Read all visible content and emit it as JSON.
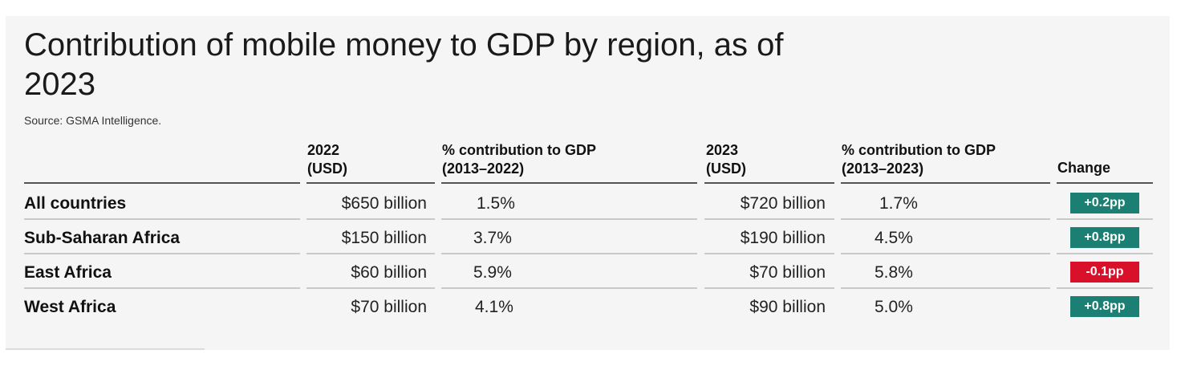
{
  "title": "Contribution of mobile money to GDP by region, as of 2023",
  "source": "Source: GSMA Intelligence.",
  "chart_data": {
    "type": "table",
    "columns": [
      {
        "line1": "",
        "line2": ""
      },
      {
        "line1": "2022",
        "line2": "(USD)"
      },
      {
        "line1": "% contribution to GDP",
        "line2": "(2013–2022)"
      },
      {
        "line1": "2023",
        "line2": "(USD)"
      },
      {
        "line1": "% contribution to GDP",
        "line2": "(2013–2023)"
      },
      {
        "line1": "Change",
        "line2": ""
      }
    ],
    "rows": [
      {
        "region": "All countries",
        "usd_2022": "$650 billion",
        "pct_2022": "1.5%",
        "usd_2023": "$720 billion",
        "pct_2023": "1.7%",
        "change": "+0.2pp",
        "change_color": "#1b7f73"
      },
      {
        "region": "Sub-Saharan Africa",
        "usd_2022": "$150 billion",
        "pct_2022": "3.7%",
        "usd_2023": "$190 billion",
        "pct_2023": "4.5%",
        "change": "+0.8pp",
        "change_color": "#1b7f73"
      },
      {
        "region": "East Africa",
        "usd_2022": "$60 billion",
        "pct_2022": "5.9%",
        "usd_2023": "$70 billion",
        "pct_2023": "5.8%",
        "change": "-0.1pp",
        "change_color": "#d9102a"
      },
      {
        "region": "West Africa",
        "usd_2022": "$70 billion",
        "pct_2022": "4.1%",
        "usd_2023": "$90 billion",
        "pct_2023": "5.0%",
        "change": "+0.8pp",
        "change_color": "#1b7f73"
      }
    ]
  }
}
